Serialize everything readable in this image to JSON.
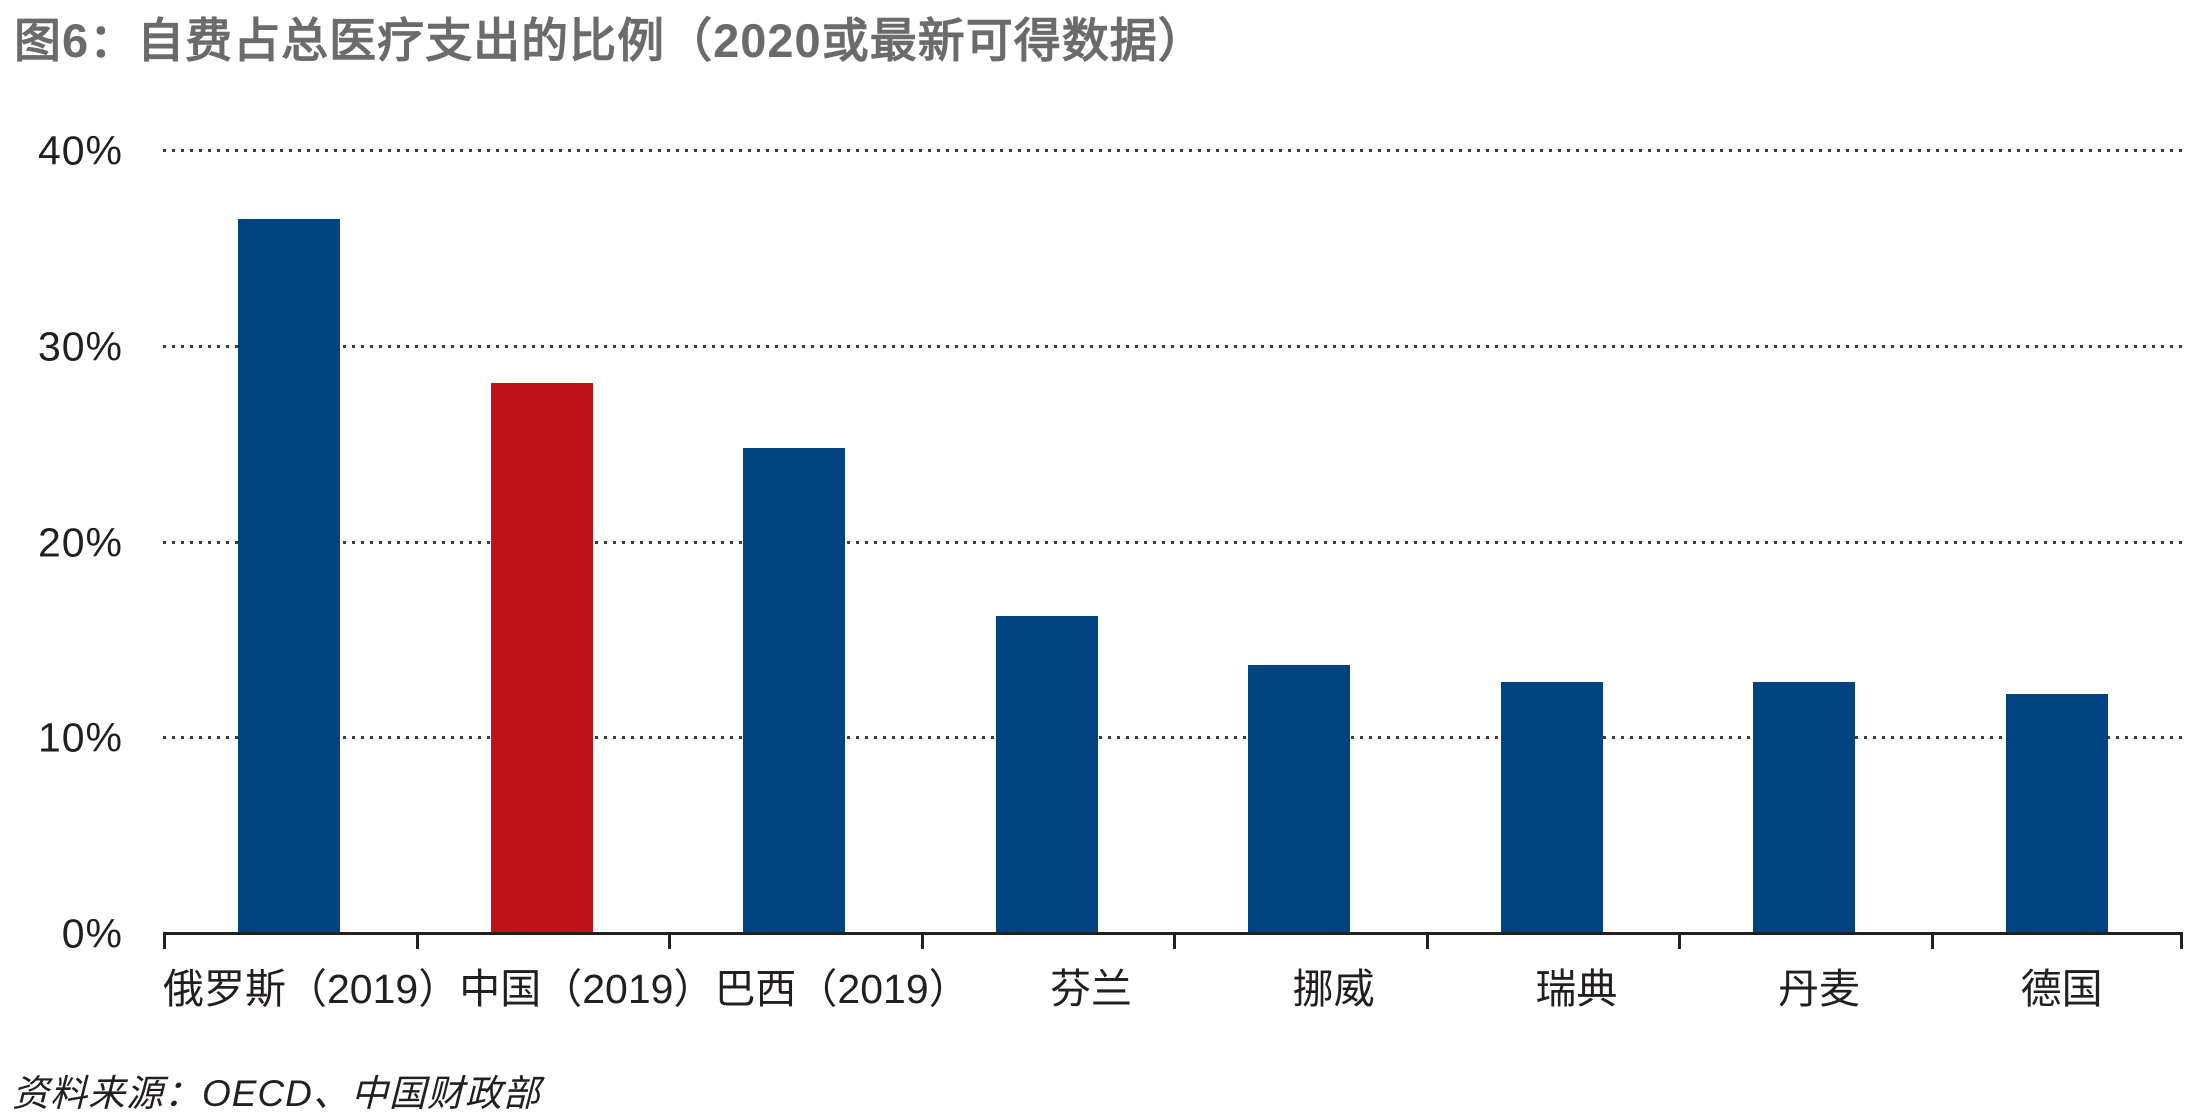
{
  "chart_data": {
    "type": "bar",
    "title": "图6：自费占总医疗支出的比例（2020或最新可得数据）",
    "categories": [
      "俄罗斯（2019）",
      "中国（2019）",
      "巴西（2019）",
      "芬兰",
      "挪威",
      "瑞典",
      "丹麦",
      "德国"
    ],
    "values": [
      36.5,
      28.1,
      24.8,
      16.2,
      13.7,
      12.8,
      12.8,
      12.2
    ],
    "unit": "%",
    "highlight_index": 1,
    "highlight_category": "中国（2019）",
    "ylim": [
      0,
      40
    ],
    "y_ticks": [
      {
        "label": "40%",
        "value": 40
      },
      {
        "label": "30%",
        "value": 30
      },
      {
        "label": "20%",
        "value": 20
      },
      {
        "label": "10%",
        "value": 10
      },
      {
        "label": "0%",
        "value": 0
      }
    ],
    "grid": "horizontal-dotted",
    "legend": "none",
    "colors": {
      "bar": "#004381",
      "highlight": "#c11218",
      "title": "#6b6b6b",
      "axis_text": "#231f20",
      "gridline": "#403a3b",
      "axis_line": "#231f20"
    },
    "source": "资料来源：OECD、中国财政部"
  }
}
